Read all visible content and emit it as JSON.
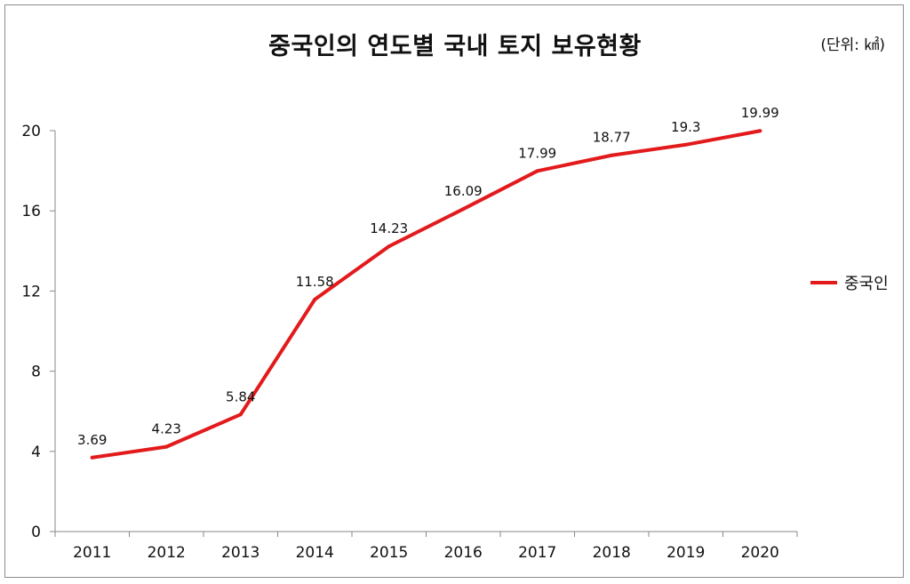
{
  "chart_data": {
    "type": "line",
    "title": "중국인의 연도별 국내 토지 보유현황",
    "unit_note": "(단위: ㎢)",
    "categories": [
      "2011",
      "2012",
      "2013",
      "2014",
      "2015",
      "2016",
      "2017",
      "2018",
      "2019",
      "2020"
    ],
    "series": [
      {
        "name": "중국인",
        "values": [
          3.69,
          4.23,
          5.84,
          11.58,
          14.23,
          16.09,
          17.99,
          18.77,
          19.3,
          19.99
        ],
        "labels": [
          "3.69",
          "4.23",
          "5.84",
          "11.58",
          "14.23",
          "16.09",
          "17.99",
          "18.77",
          "19.3",
          "19.99"
        ],
        "color": "#e31a1c"
      }
    ],
    "ylim": [
      0,
      20
    ],
    "yticks": [
      0,
      4,
      8,
      12,
      16,
      20
    ],
    "grid": false,
    "legend": "right"
  }
}
